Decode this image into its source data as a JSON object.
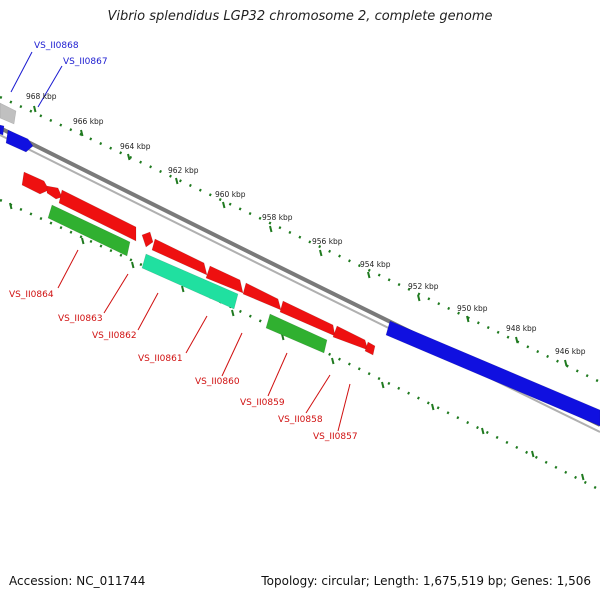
{
  "title": "Vibrio splendidus LGP32 chromosome 2, complete genome",
  "footer": {
    "accession": "Accession: NC_011744",
    "summary": "Topology: circular; Length: 1,675,519 bp; Genes: 1,506"
  },
  "colors": {
    "backbone": "#7a7a7a",
    "tick_ring": "#1f7a1f",
    "forward_label": "#1a1ad0",
    "reverse_label": "#d01010",
    "gene_blue": "#1010e0",
    "gene_red": "#ee1010",
    "gene_green": "#30b030",
    "gene_teal": "#20e0a0",
    "gene_gray": "#c0c0c0"
  },
  "scale_labels": [
    "968 kbp",
    "966 kbp",
    "964 kbp",
    "962 kbp",
    "960 kbp",
    "958 kbp",
    "956 kbp",
    "954 kbp",
    "952 kbp",
    "950 kbp",
    "948 kbp",
    "946 kbp"
  ],
  "gene_labels": {
    "forward": [
      "VS_II0868",
      "VS_II0867"
    ],
    "reverse": [
      "VS_II0864",
      "VS_II0863",
      "VS_II0862",
      "VS_II0861",
      "VS_II0860",
      "VS_II0859",
      "VS_II0858",
      "VS_II0857"
    ]
  }
}
